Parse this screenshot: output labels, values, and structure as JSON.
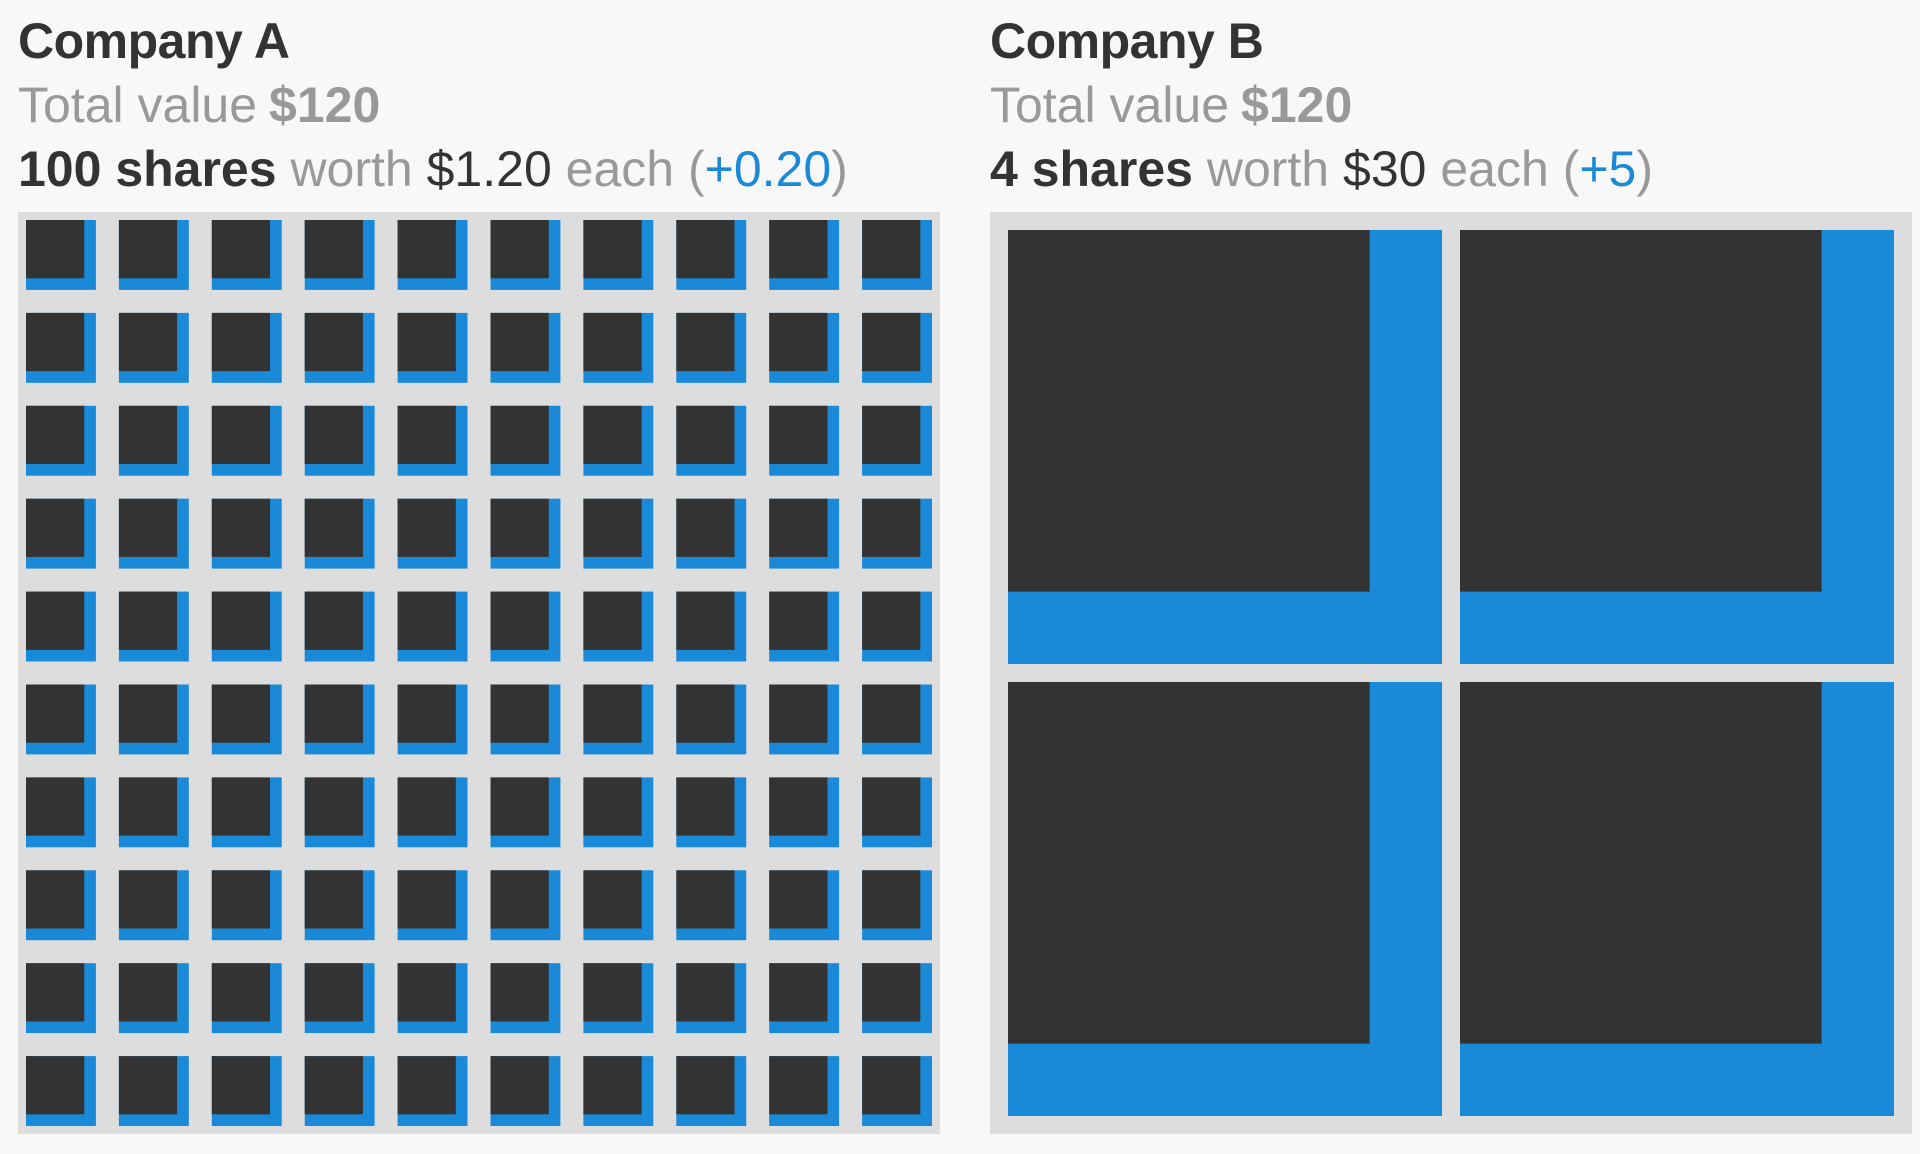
{
  "colors": {
    "background": "#f8f8f8",
    "grid_background": "#dddddd",
    "share_fill": "#333333",
    "gain_fill": "#1a8ad8",
    "label_grey": "#999999",
    "label_dark": "#333333"
  },
  "companies": [
    {
      "name": "Company A",
      "total_label": "Total value",
      "total_value": "$120",
      "shares_text": "100 shares",
      "worth_word": "worth",
      "price": "$1.20",
      "each_word": "each",
      "paren_open": "(",
      "change": "+0.20",
      "paren_close": ")",
      "share_count": 100,
      "columns": 10,
      "value_fraction_base": 0.8333
    },
    {
      "name": "Company B",
      "total_label": "Total value",
      "total_value": "$120",
      "shares_text": "4 shares",
      "worth_word": "worth",
      "price": "$30",
      "each_word": "each",
      "paren_open": "(",
      "change": "+5",
      "paren_close": ")",
      "share_count": 4,
      "columns": 2,
      "value_fraction_base": 0.8333
    }
  ]
}
